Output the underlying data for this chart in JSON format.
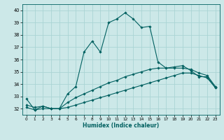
{
  "xlabel": "Humidex (Indice chaleur)",
  "ylabel": "",
  "xlim": [
    -0.5,
    23.5
  ],
  "ylim": [
    31.5,
    40.5
  ],
  "yticks": [
    32,
    33,
    34,
    35,
    36,
    37,
    38,
    39,
    40
  ],
  "xticks": [
    0,
    1,
    2,
    3,
    4,
    5,
    6,
    7,
    8,
    9,
    10,
    11,
    12,
    13,
    14,
    15,
    16,
    17,
    18,
    19,
    20,
    21,
    22,
    23
  ],
  "background_color": "#cce8e8",
  "grid_color": "#aad4d4",
  "line_color": "#006060",
  "line1_y": [
    32.8,
    31.9,
    32.2,
    32.0,
    32.0,
    33.2,
    33.8,
    36.6,
    37.5,
    36.6,
    39.0,
    39.3,
    39.8,
    39.3,
    38.6,
    38.7,
    35.8,
    35.3,
    35.4,
    35.5,
    35.1,
    34.6,
    34.6,
    33.7
  ],
  "line2_y": [
    32.3,
    32.1,
    32.2,
    32.0,
    32.0,
    32.5,
    32.9,
    33.2,
    33.5,
    33.8,
    34.1,
    34.3,
    34.6,
    34.8,
    35.0,
    35.2,
    35.3,
    35.3,
    35.3,
    35.3,
    35.2,
    34.9,
    34.7,
    33.8
  ],
  "line3_y": [
    32.1,
    31.9,
    32.0,
    32.0,
    32.0,
    32.1,
    32.3,
    32.5,
    32.7,
    32.9,
    33.1,
    33.3,
    33.5,
    33.7,
    33.9,
    34.1,
    34.3,
    34.5,
    34.7,
    34.9,
    34.9,
    34.7,
    34.5,
    33.7
  ]
}
